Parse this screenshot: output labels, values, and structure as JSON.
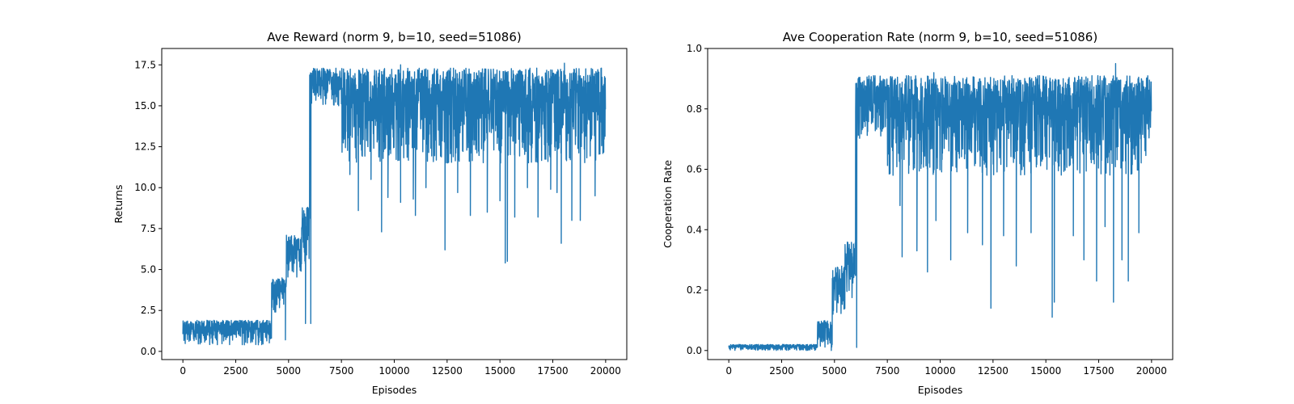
{
  "figure": {
    "background": "#ffffff",
    "line_color": "#1f77b4"
  },
  "chart_data": [
    {
      "type": "line",
      "title": "Ave Reward (norm 9, b=10, seed=51086)",
      "xlabel": "Episodes",
      "ylabel": "Returns",
      "xlim": [
        -1000,
        21000
      ],
      "ylim": [
        -0.5,
        18.5
      ],
      "xticks": [
        0,
        2500,
        5000,
        7500,
        10000,
        12500,
        15000,
        17500,
        20000
      ],
      "xtick_labels": [
        "0",
        "2500",
        "5000",
        "7500",
        "10000",
        "12500",
        "15000",
        "17500",
        "20000"
      ],
      "yticks": [
        0.0,
        2.5,
        5.0,
        7.5,
        10.0,
        12.5,
        15.0,
        17.5
      ],
      "ytick_labels": [
        "0.0",
        "2.5",
        "5.0",
        "7.5",
        "10.0",
        "12.5",
        "15.0",
        "17.5"
      ],
      "grid": false,
      "series": [
        {
          "color": "#1f77b4",
          "segments": [
            {
              "x0": 0,
              "x1": 4200,
              "lo": 0.4,
              "hi": 1.9
            },
            {
              "x0": 4200,
              "x1": 4900,
              "lo": 2.4,
              "hi": 4.5
            },
            {
              "x0": 4900,
              "x1": 5600,
              "lo": 4.5,
              "hi": 7.1
            },
            {
              "x0": 5600,
              "x1": 6000,
              "lo": 5.3,
              "hi": 8.8
            },
            {
              "x0": 6000,
              "x1": 7500,
              "lo": 15.0,
              "hi": 17.3
            },
            {
              "x0": 7500,
              "x1": 20000,
              "lo": 11.5,
              "hi": 17.3
            }
          ],
          "spikes": [
            [
              4850,
              0.7
            ],
            [
              5800,
              1.7
            ],
            [
              6050,
              1.7
            ],
            [
              7900,
              10.8
            ],
            [
              8300,
              8.6
            ],
            [
              8900,
              10.5
            ],
            [
              9400,
              7.3
            ],
            [
              9700,
              9.4
            ],
            [
              10300,
              9.1
            ],
            [
              10900,
              9.3
            ],
            [
              11000,
              8.3
            ],
            [
              11500,
              10.0
            ],
            [
              12400,
              6.2
            ],
            [
              13000,
              9.7
            ],
            [
              13600,
              8.3
            ],
            [
              14400,
              8.5
            ],
            [
              15000,
              9.2
            ],
            [
              15250,
              5.4
            ],
            [
              15350,
              5.5
            ],
            [
              15700,
              8.2
            ],
            [
              16300,
              10.0
            ],
            [
              16800,
              8.2
            ],
            [
              17400,
              9.9
            ],
            [
              17700,
              9.7
            ],
            [
              17900,
              6.6
            ],
            [
              18400,
              8.0
            ],
            [
              18800,
              8.0
            ],
            [
              19500,
              9.5
            ]
          ],
          "peaks": [
            [
              5900,
              8.8
            ],
            [
              10300,
              17.5
            ],
            [
              18050,
              17.6
            ],
            [
              19800,
              17.3
            ]
          ]
        }
      ]
    },
    {
      "type": "line",
      "title": "Ave Cooperation Rate (norm 9, b=10, seed=51086)",
      "xlabel": "Episodes",
      "ylabel": "Cooperation Rate",
      "xlim": [
        -1000,
        21000
      ],
      "ylim": [
        -0.03,
        1.0
      ],
      "xticks": [
        0,
        2500,
        5000,
        7500,
        10000,
        12500,
        15000,
        17500,
        20000
      ],
      "xtick_labels": [
        "0",
        "2500",
        "5000",
        "7500",
        "10000",
        "12500",
        "15000",
        "17500",
        "20000"
      ],
      "yticks": [
        0.0,
        0.2,
        0.4,
        0.6,
        0.8,
        1.0
      ],
      "ytick_labels": [
        "0.0",
        "0.2",
        "0.4",
        "0.6",
        "0.8",
        "1.0"
      ],
      "grid": false,
      "series": [
        {
          "color": "#1f77b4",
          "segments": [
            {
              "x0": 0,
              "x1": 4200,
              "lo": 0.0,
              "hi": 0.02
            },
            {
              "x0": 4200,
              "x1": 4900,
              "lo": 0.01,
              "hi": 0.1
            },
            {
              "x0": 4900,
              "x1": 5500,
              "lo": 0.12,
              "hi": 0.28
            },
            {
              "x0": 5500,
              "x1": 6000,
              "lo": 0.15,
              "hi": 0.36
            },
            {
              "x0": 6000,
              "x1": 7500,
              "lo": 0.7,
              "hi": 0.91
            },
            {
              "x0": 7500,
              "x1": 20000,
              "lo": 0.58,
              "hi": 0.91
            }
          ],
          "spikes": [
            [
              4850,
              0.0
            ],
            [
              6050,
              0.01
            ],
            [
              8100,
              0.48
            ],
            [
              8200,
              0.31
            ],
            [
              8900,
              0.33
            ],
            [
              9400,
              0.26
            ],
            [
              9800,
              0.43
            ],
            [
              10500,
              0.3
            ],
            [
              11300,
              0.39
            ],
            [
              12000,
              0.35
            ],
            [
              12400,
              0.14
            ],
            [
              13000,
              0.38
            ],
            [
              13600,
              0.28
            ],
            [
              14300,
              0.39
            ],
            [
              15300,
              0.11
            ],
            [
              15400,
              0.16
            ],
            [
              16300,
              0.38
            ],
            [
              16800,
              0.3
            ],
            [
              17400,
              0.23
            ],
            [
              17800,
              0.41
            ],
            [
              18200,
              0.16
            ],
            [
              18600,
              0.3
            ],
            [
              18900,
              0.23
            ],
            [
              19400,
              0.39
            ]
          ],
          "peaks": [
            [
              9700,
              0.92
            ],
            [
              14700,
              0.91
            ],
            [
              18300,
              0.95
            ],
            [
              19900,
              0.89
            ]
          ]
        }
      ]
    }
  ]
}
